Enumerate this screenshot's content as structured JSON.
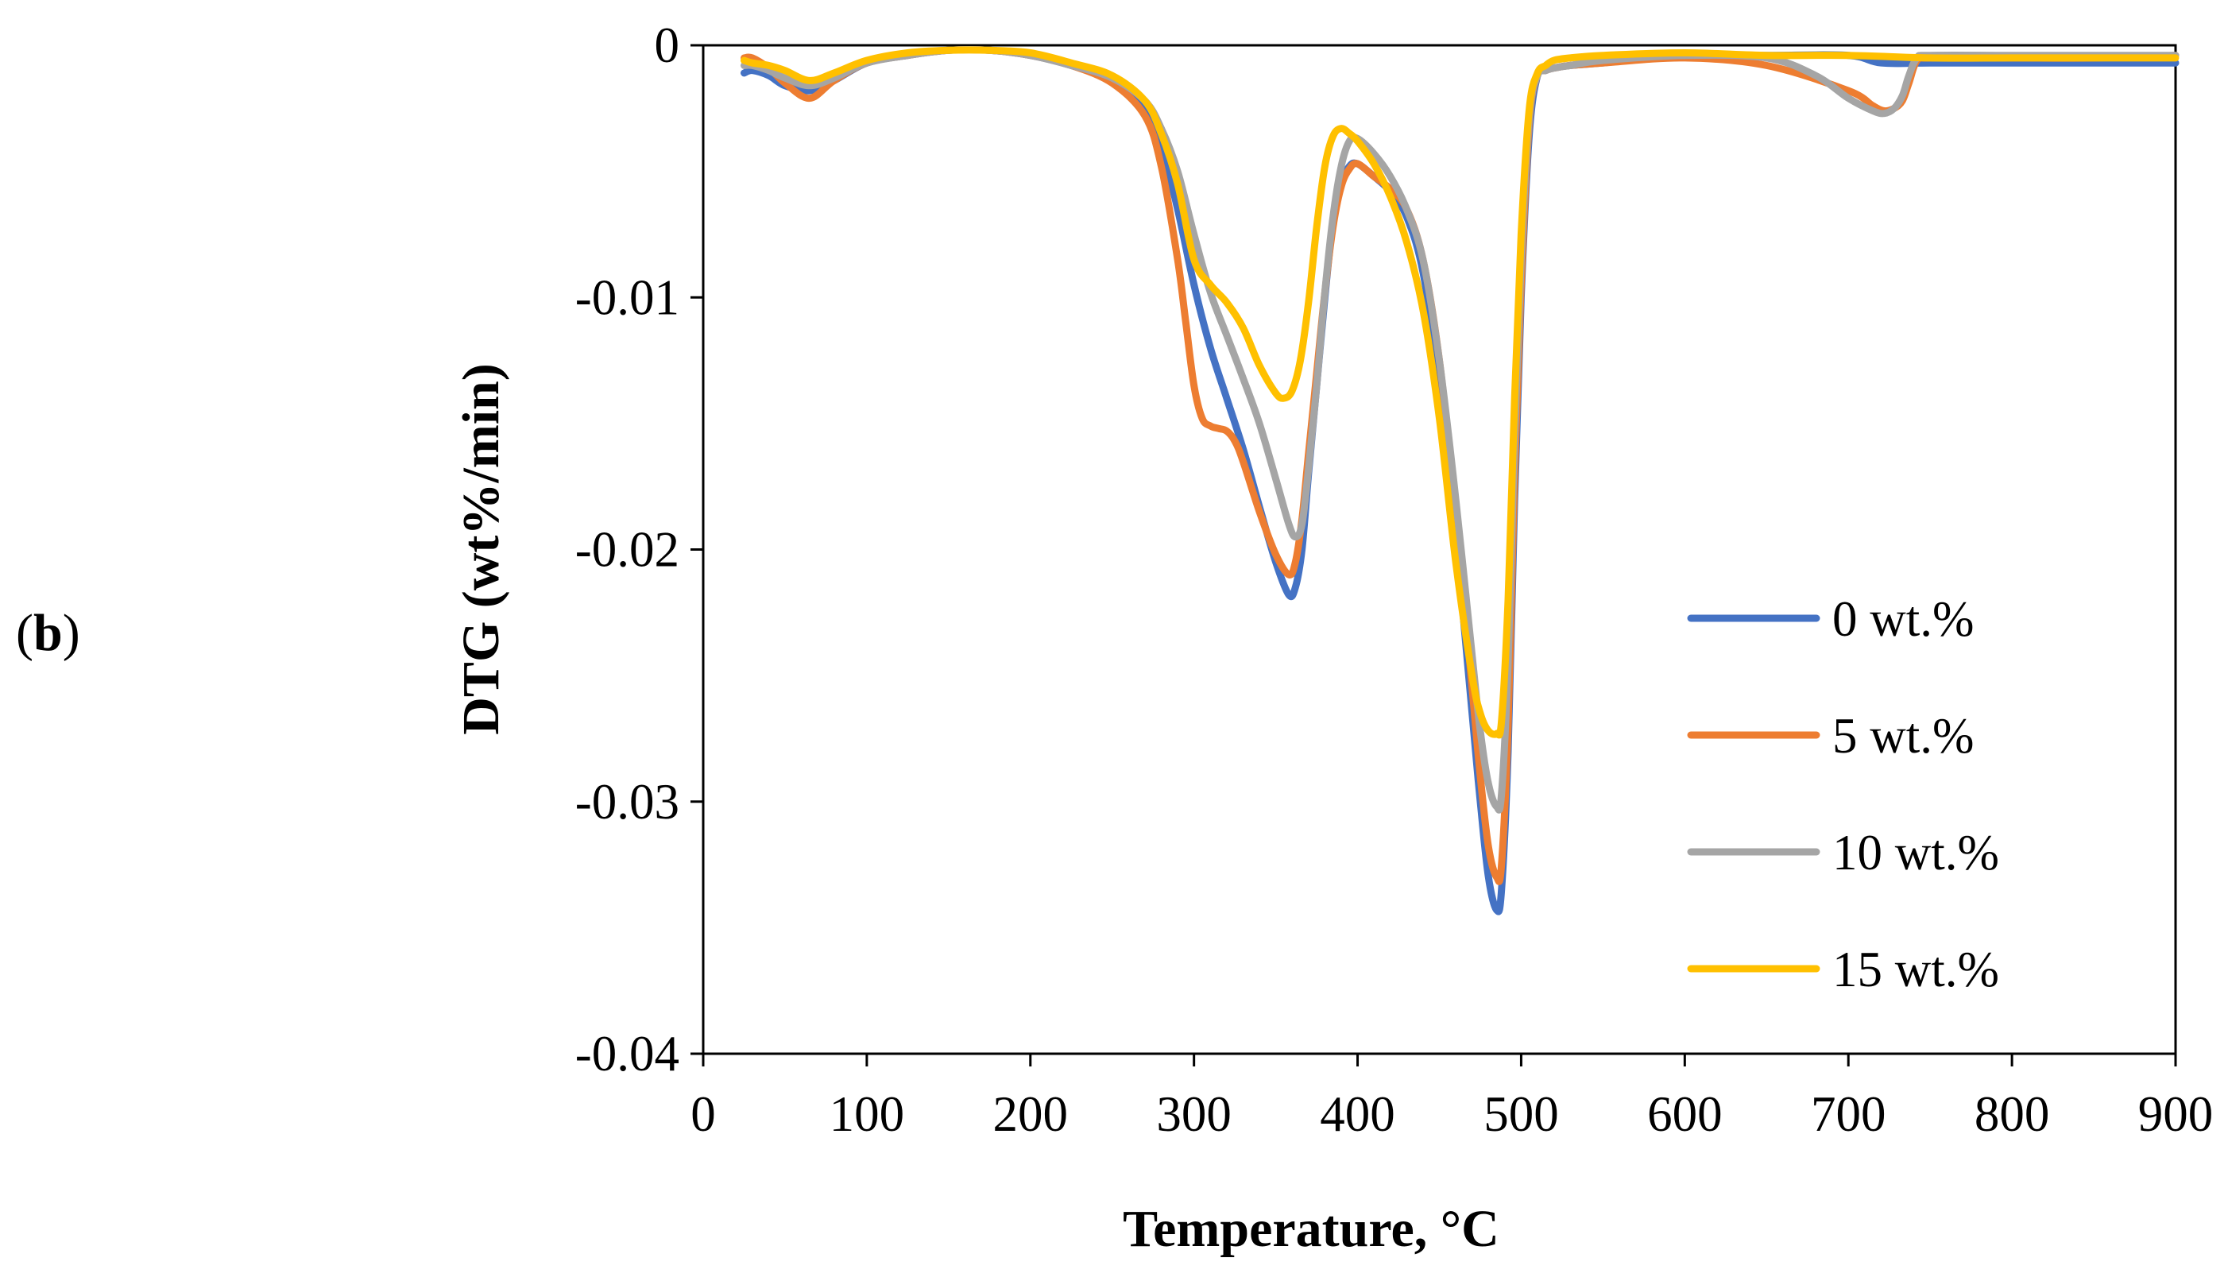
{
  "panel_label": {
    "open": "(",
    "letter": "b",
    "close": ")"
  },
  "chart_data": {
    "type": "line",
    "title": "",
    "xlabel": "Temperature, °C",
    "ylabel": "DTG (wt%/min)",
    "xlim": [
      0,
      900
    ],
    "ylim": [
      -0.04,
      0
    ],
    "x_ticks": [
      0,
      100,
      200,
      300,
      400,
      500,
      600,
      700,
      800,
      900
    ],
    "x_tick_labels": [
      "0",
      "100",
      "200",
      "300",
      "400",
      "500",
      "600",
      "700",
      "800",
      "900"
    ],
    "y_ticks": [
      0,
      -0.01,
      -0.02,
      -0.03,
      -0.04
    ],
    "y_tick_labels": [
      "0",
      "-0.01",
      "-0.02",
      "-0.03",
      "-0.04"
    ],
    "grid": false,
    "legend_position": "right",
    "series": [
      {
        "name": "0 wt.%",
        "color": "#4472C4",
        "x": [
          25,
          30,
          40,
          50,
          65,
          80,
          100,
          125,
          150,
          175,
          200,
          225,
          250,
          270,
          280,
          290,
          300,
          310,
          320,
          330,
          340,
          350,
          358,
          362,
          366,
          370,
          375,
          380,
          385,
          390,
          395,
          400,
          410,
          420,
          430,
          440,
          450,
          460,
          470,
          475,
          480,
          485,
          488,
          492,
          496,
          500,
          505,
          510,
          515,
          520,
          530,
          550,
          600,
          650,
          700,
          720,
          750,
          800,
          850,
          900
        ],
        "y": [
          -0.0011,
          -0.001,
          -0.0012,
          -0.0016,
          -0.0018,
          -0.0014,
          -0.0007,
          -0.0004,
          -0.0002,
          -0.0002,
          -0.0004,
          -0.0008,
          -0.0014,
          -0.0025,
          -0.004,
          -0.0065,
          -0.0095,
          -0.012,
          -0.014,
          -0.016,
          -0.0183,
          -0.0205,
          -0.0218,
          -0.0215,
          -0.02,
          -0.017,
          -0.0135,
          -0.01,
          -0.007,
          -0.0055,
          -0.0048,
          -0.0047,
          -0.0052,
          -0.0058,
          -0.0068,
          -0.009,
          -0.0135,
          -0.0195,
          -0.0265,
          -0.03,
          -0.033,
          -0.0343,
          -0.0335,
          -0.028,
          -0.018,
          -0.01,
          -0.0035,
          -0.0012,
          -0.001,
          -0.0009,
          -0.0008,
          -0.0007,
          -0.0004,
          -0.0004,
          -0.0004,
          -0.0007,
          -0.0007,
          -0.0007,
          -0.0007,
          -0.0007
        ]
      },
      {
        "name": "5 wt.%",
        "color": "#ED7D31",
        "x": [
          25,
          30,
          40,
          50,
          65,
          80,
          100,
          125,
          150,
          175,
          200,
          225,
          250,
          270,
          280,
          290,
          295,
          300,
          305,
          310,
          315,
          320,
          325,
          330,
          340,
          350,
          358,
          362,
          366,
          370,
          375,
          380,
          385,
          390,
          395,
          400,
          410,
          420,
          430,
          440,
          450,
          460,
          470,
          475,
          480,
          485,
          488,
          492,
          496,
          500,
          505,
          510,
          515,
          520,
          530,
          550,
          600,
          650,
          700,
          715,
          722,
          728,
          733,
          737,
          742,
          750,
          800,
          850,
          900
        ],
        "y": [
          -0.0005,
          -0.0005,
          -0.0009,
          -0.0015,
          -0.0021,
          -0.0014,
          -0.0007,
          -0.0004,
          -0.0002,
          -0.0002,
          -0.0004,
          -0.0008,
          -0.0015,
          -0.0028,
          -0.0048,
          -0.0085,
          -0.011,
          -0.0135,
          -0.0148,
          -0.0151,
          -0.0152,
          -0.0153,
          -0.0157,
          -0.0165,
          -0.0185,
          -0.0202,
          -0.021,
          -0.0205,
          -0.0188,
          -0.0162,
          -0.013,
          -0.0098,
          -0.0072,
          -0.0056,
          -0.0049,
          -0.0047,
          -0.0052,
          -0.0057,
          -0.0065,
          -0.0085,
          -0.0125,
          -0.0185,
          -0.0255,
          -0.029,
          -0.0318,
          -0.033,
          -0.0325,
          -0.027,
          -0.017,
          -0.0095,
          -0.003,
          -0.0012,
          -0.001,
          -0.0009,
          -0.0008,
          -0.0007,
          -0.0005,
          -0.0008,
          -0.0018,
          -0.0024,
          -0.0026,
          -0.0025,
          -0.0022,
          -0.0015,
          -0.0006,
          -0.0005,
          -0.0005,
          -0.0005,
          -0.0004
        ]
      },
      {
        "name": "10 wt.%",
        "color": "#A5A5A5",
        "x": [
          25,
          30,
          40,
          50,
          65,
          80,
          100,
          125,
          150,
          175,
          200,
          225,
          250,
          270,
          280,
          290,
          300,
          310,
          320,
          330,
          340,
          350,
          358,
          362,
          366,
          370,
          375,
          380,
          385,
          390,
          395,
          400,
          410,
          420,
          430,
          440,
          450,
          460,
          470,
          475,
          480,
          485,
          488,
          492,
          496,
          500,
          505,
          510,
          515,
          520,
          530,
          550,
          600,
          650,
          680,
          700,
          715,
          722,
          728,
          733,
          737,
          742,
          750,
          800,
          850,
          900
        ],
        "y": [
          -0.0008,
          -0.0008,
          -0.001,
          -0.0013,
          -0.0016,
          -0.0013,
          -0.0007,
          -0.0004,
          -0.0002,
          -0.0002,
          -0.0004,
          -0.0008,
          -0.0013,
          -0.0022,
          -0.0033,
          -0.005,
          -0.0075,
          -0.0098,
          -0.0115,
          -0.0132,
          -0.015,
          -0.0172,
          -0.019,
          -0.0195,
          -0.019,
          -0.0168,
          -0.0135,
          -0.0098,
          -0.0068,
          -0.0048,
          -0.0038,
          -0.0037,
          -0.0043,
          -0.0052,
          -0.0065,
          -0.0085,
          -0.0125,
          -0.018,
          -0.0242,
          -0.0272,
          -0.0293,
          -0.0302,
          -0.0297,
          -0.0245,
          -0.0155,
          -0.0085,
          -0.0028,
          -0.0012,
          -0.001,
          -0.0009,
          -0.0008,
          -0.0006,
          -0.0004,
          -0.0005,
          -0.0012,
          -0.0021,
          -0.0026,
          -0.0027,
          -0.0025,
          -0.002,
          -0.0012,
          -0.0005,
          -0.0004,
          -0.0004,
          -0.0004,
          -0.0004
        ]
      },
      {
        "name": "15 wt.%",
        "color": "#FFC000",
        "x": [
          25,
          30,
          40,
          50,
          65,
          80,
          100,
          125,
          150,
          175,
          200,
          225,
          250,
          270,
          280,
          290,
          300,
          310,
          320,
          330,
          340,
          350,
          355,
          360,
          365,
          370,
          375,
          380,
          385,
          390,
          395,
          400,
          410,
          420,
          430,
          440,
          450,
          460,
          470,
          475,
          480,
          485,
          488,
          492,
          496,
          500,
          505,
          510,
          515,
          520,
          530,
          550,
          600,
          650,
          700,
          750,
          800,
          850,
          900
        ],
        "y": [
          -0.0006,
          -0.0007,
          -0.0008,
          -0.001,
          -0.0014,
          -0.0011,
          -0.0006,
          -0.0003,
          -0.0002,
          -0.0002,
          -0.0003,
          -0.0007,
          -0.0012,
          -0.0022,
          -0.0035,
          -0.0055,
          -0.0085,
          -0.0095,
          -0.0102,
          -0.0112,
          -0.0127,
          -0.0138,
          -0.014,
          -0.0137,
          -0.0125,
          -0.0102,
          -0.0072,
          -0.0048,
          -0.0036,
          -0.0033,
          -0.0035,
          -0.0038,
          -0.0047,
          -0.006,
          -0.0078,
          -0.0105,
          -0.0148,
          -0.0205,
          -0.025,
          -0.0265,
          -0.0272,
          -0.0273,
          -0.0268,
          -0.022,
          -0.014,
          -0.0075,
          -0.0025,
          -0.0011,
          -0.0008,
          -0.0006,
          -0.0005,
          -0.0004,
          -0.0003,
          -0.0004,
          -0.0004,
          -0.0005,
          -0.0005,
          -0.0005,
          -0.0005
        ]
      }
    ]
  }
}
